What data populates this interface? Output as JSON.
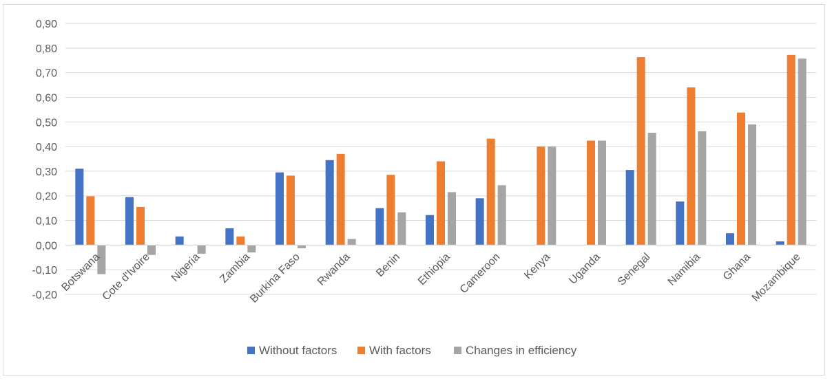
{
  "chart_data": {
    "type": "bar",
    "title": "",
    "xlabel": "",
    "ylabel": "",
    "ylim": [
      -0.2,
      0.9
    ],
    "y_ticks": [
      "-0,20",
      "-0,10",
      "0,00",
      "0,10",
      "0,20",
      "0,30",
      "0,40",
      "0,50",
      "0,60",
      "0,70",
      "0,80",
      "0,90"
    ],
    "grid": true,
    "legend_position": "bottom",
    "categories": [
      "Botswana",
      "Cote d'Ivoire",
      "Nigeria",
      "Zambia",
      "Burkina Faso",
      "Rwanda",
      "Benin",
      "Ethiopia",
      "Cameroon",
      "Kenya",
      "Uganda",
      "Senegal",
      "Namibia",
      "Ghana",
      "Mozambique"
    ],
    "series": [
      {
        "name": "Without factors",
        "color": "#4472C4",
        "values": [
          0.31,
          0.195,
          0.035,
          0.068,
          0.295,
          0.345,
          0.15,
          0.122,
          0.19,
          0.0,
          0.0,
          0.305,
          0.177,
          0.048,
          0.015
        ]
      },
      {
        "name": "With factors",
        "color": "#ED7D31",
        "values": [
          0.198,
          0.155,
          0.0,
          0.035,
          0.282,
          0.37,
          0.285,
          0.34,
          0.432,
          0.4,
          0.424,
          0.763,
          0.64,
          0.538,
          0.772
        ]
      },
      {
        "name": "Changes in efficiency",
        "color": "#A5A5A5",
        "values": [
          -0.118,
          -0.04,
          -0.035,
          -0.03,
          -0.013,
          0.025,
          0.133,
          0.215,
          0.243,
          0.4,
          0.424,
          0.456,
          0.462,
          0.49,
          0.757
        ]
      }
    ]
  }
}
